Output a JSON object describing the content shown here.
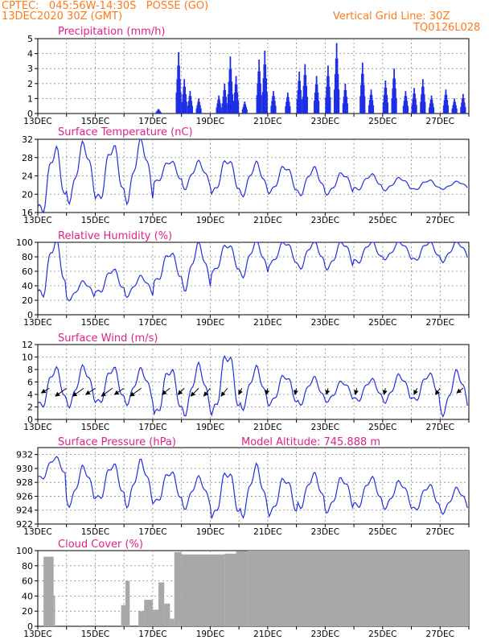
{
  "header": {
    "line1_left": "CPTEC:   045:56W-14:30S   POSSE (GO)",
    "line2_left": "13DEC2020 30Z (GMT)",
    "line1_right": "Vertical Grid Line: 30Z",
    "line2_right": "TQ0126L028",
    "model_altitude": "Model Altitude: 745.888 m"
  },
  "colors": {
    "header": "#ff7a1a",
    "title": "#e0208a",
    "line": "#2030e0",
    "bar": "#1e2ee6",
    "cloud": "#a8a8a8",
    "wind_arrow": "#000000"
  },
  "x_labels": [
    "13DEC",
    "15DEC",
    "17DEC",
    "19DEC",
    "21DEC",
    "23DEC",
    "25DEC",
    "27DEC"
  ],
  "chart_data": [
    {
      "type": "bar",
      "title": "Precipitation (mm/h)",
      "ylim": [
        0,
        5
      ],
      "yticks": [
        0,
        1,
        2,
        3,
        4,
        5
      ],
      "x_start": "13DEC2020",
      "x_end": "28DEC2020",
      "peaks": [
        {
          "day": 4.2,
          "value": 0.3
        },
        {
          "day": 4.9,
          "value": 4.1
        },
        {
          "day": 5.1,
          "value": 2.3
        },
        {
          "day": 5.3,
          "value": 1.5
        },
        {
          "day": 5.6,
          "value": 1.0
        },
        {
          "day": 6.3,
          "value": 1.2
        },
        {
          "day": 6.5,
          "value": 2.0
        },
        {
          "day": 6.7,
          "value": 3.8
        },
        {
          "day": 6.9,
          "value": 2.5
        },
        {
          "day": 7.2,
          "value": 0.8
        },
        {
          "day": 7.7,
          "value": 3.6
        },
        {
          "day": 7.9,
          "value": 4.2
        },
        {
          "day": 8.2,
          "value": 1.5
        },
        {
          "day": 8.7,
          "value": 1.4
        },
        {
          "day": 9.1,
          "value": 2.8
        },
        {
          "day": 9.3,
          "value": 3.3
        },
        {
          "day": 9.7,
          "value": 2.5
        },
        {
          "day": 10.1,
          "value": 3.2
        },
        {
          "day": 10.4,
          "value": 4.7
        },
        {
          "day": 10.7,
          "value": 2.0
        },
        {
          "day": 11.3,
          "value": 3.4
        },
        {
          "day": 11.6,
          "value": 1.6
        },
        {
          "day": 12.1,
          "value": 2.2
        },
        {
          "day": 12.4,
          "value": 3.0
        },
        {
          "day": 12.8,
          "value": 1.5
        },
        {
          "day": 13.1,
          "value": 1.7
        },
        {
          "day": 13.4,
          "value": 2.3
        },
        {
          "day": 13.7,
          "value": 1.2
        },
        {
          "day": 14.2,
          "value": 1.6
        },
        {
          "day": 14.5,
          "value": 1.0
        },
        {
          "day": 14.8,
          "value": 1.3
        }
      ]
    },
    {
      "type": "line",
      "title": "Surface Temperature (nC)",
      "ylim": [
        16,
        32
      ],
      "yticks": [
        16,
        20,
        24,
        28,
        32
      ],
      "daily_max": [
        29.5,
        30.5,
        30.3,
        31.3,
        27.2,
        26.8,
        27.5,
        26.5,
        26.0,
        25.5,
        24.5,
        24.2,
        23.5,
        23.0,
        22.7
      ],
      "daily_min": [
        16.0,
        19.2,
        18.6,
        19.2,
        22.5,
        21.5,
        20.3,
        20.0,
        20.5,
        20.0,
        20.2,
        21.0,
        21.0,
        21.0,
        21.2
      ]
    },
    {
      "type": "line",
      "title": "Relative Humidity (%)",
      "ylim": [
        0,
        100
      ],
      "yticks": [
        0,
        20,
        40,
        60,
        80,
        100
      ],
      "daily_max": [
        100,
        45,
        62,
        52,
        85,
        95,
        97,
        100,
        100,
        100,
        100,
        100,
        100,
        100,
        100
      ],
      "daily_min": [
        25,
        22,
        30,
        27,
        45,
        38,
        58,
        55,
        70,
        65,
        65,
        72,
        78,
        75,
        75
      ]
    },
    {
      "type": "line",
      "title": "Surface Wind (m/s)",
      "ylim": [
        0,
        12
      ],
      "yticks": [
        0,
        2,
        4,
        6,
        8,
        10,
        12
      ],
      "daily_max": [
        8.0,
        8.2,
        8.2,
        7.8,
        8.0,
        8.3,
        10.4,
        8.0,
        7.0,
        6.5,
        6.0,
        6.3,
        7.0,
        7.2,
        7.4
      ],
      "daily_min": [
        2.0,
        2.5,
        2.5,
        2.8,
        0.7,
        1.2,
        1.0,
        2.0,
        2.5,
        2.5,
        3.0,
        3.0,
        3.0,
        3.0,
        1.2
      ],
      "arrows": [
        {
          "day": 0.4,
          "dx": -10,
          "dy": 6
        },
        {
          "day": 1.0,
          "dx": -14,
          "dy": 10
        },
        {
          "day": 1.6,
          "dx": -14,
          "dy": 10
        },
        {
          "day": 2.0,
          "dx": -12,
          "dy": 8
        },
        {
          "day": 2.6,
          "dx": -14,
          "dy": 10
        },
        {
          "day": 3.0,
          "dx": -12,
          "dy": 8
        },
        {
          "day": 3.6,
          "dx": -14,
          "dy": 10
        },
        {
          "day": 4.6,
          "dx": -10,
          "dy": 8
        },
        {
          "day": 5.1,
          "dx": -8,
          "dy": 8
        },
        {
          "day": 5.6,
          "dx": -10,
          "dy": 10
        },
        {
          "day": 6.0,
          "dx": -8,
          "dy": 10
        },
        {
          "day": 6.6,
          "dx": -8,
          "dy": 10
        },
        {
          "day": 7.1,
          "dx": -4,
          "dy": 8
        },
        {
          "day": 8.0,
          "dx": -2,
          "dy": 8
        },
        {
          "day": 9.0,
          "dx": -2,
          "dy": 8
        },
        {
          "day": 10.1,
          "dx": -2,
          "dy": 8
        },
        {
          "day": 11.1,
          "dx": -2,
          "dy": 8
        },
        {
          "day": 12.1,
          "dx": -2,
          "dy": 8
        },
        {
          "day": 13.2,
          "dx": -4,
          "dy": 8
        },
        {
          "day": 14.0,
          "dx": -6,
          "dy": 8
        },
        {
          "day": 14.8,
          "dx": -8,
          "dy": 6
        }
      ]
    },
    {
      "type": "line",
      "title": "Surface Pressure (hPa)",
      "ylim": [
        922,
        933
      ],
      "yticks": [
        922,
        924,
        926,
        928,
        930,
        932
      ],
      "daily_max": [
        931.5,
        930.0,
        930.5,
        930.8,
        929.5,
        928.5,
        929.5,
        930.0,
        928.5,
        929.0,
        928.5,
        928.5,
        928.0,
        927.5,
        927.0
      ],
      "daily_min": [
        928.5,
        925.0,
        925.5,
        925.0,
        925.0,
        924.5,
        923.0,
        923.5,
        923.5,
        924.5,
        924.0,
        924.5,
        924.5,
        924.0,
        923.8
      ]
    },
    {
      "type": "bar",
      "title": "Cloud Cover (%)",
      "ylim": [
        0,
        100
      ],
      "yticks": [
        0,
        20,
        40,
        60,
        80,
        100
      ],
      "segments": [
        {
          "from": 0.0,
          "to": 0.2,
          "value": 0
        },
        {
          "from": 0.2,
          "to": 0.55,
          "value": 92
        },
        {
          "from": 0.55,
          "to": 0.6,
          "value": 40
        },
        {
          "from": 0.6,
          "to": 2.9,
          "value": 0
        },
        {
          "from": 2.9,
          "to": 3.05,
          "value": 28
        },
        {
          "from": 3.05,
          "to": 3.2,
          "value": 60
        },
        {
          "from": 3.2,
          "to": 3.5,
          "value": 0
        },
        {
          "from": 3.5,
          "to": 3.7,
          "value": 20
        },
        {
          "from": 3.7,
          "to": 4.0,
          "value": 35
        },
        {
          "from": 4.0,
          "to": 4.2,
          "value": 22
        },
        {
          "from": 4.2,
          "to": 4.4,
          "value": 58
        },
        {
          "from": 4.4,
          "to": 4.6,
          "value": 30
        },
        {
          "from": 4.6,
          "to": 4.75,
          "value": 10
        },
        {
          "from": 4.75,
          "to": 5.0,
          "value": 98
        },
        {
          "from": 5.0,
          "to": 6.5,
          "value": 95
        },
        {
          "from": 6.5,
          "to": 6.9,
          "value": 96
        },
        {
          "from": 6.9,
          "to": 7.3,
          "value": 99
        },
        {
          "from": 7.3,
          "to": 15.0,
          "value": 100
        }
      ]
    }
  ]
}
